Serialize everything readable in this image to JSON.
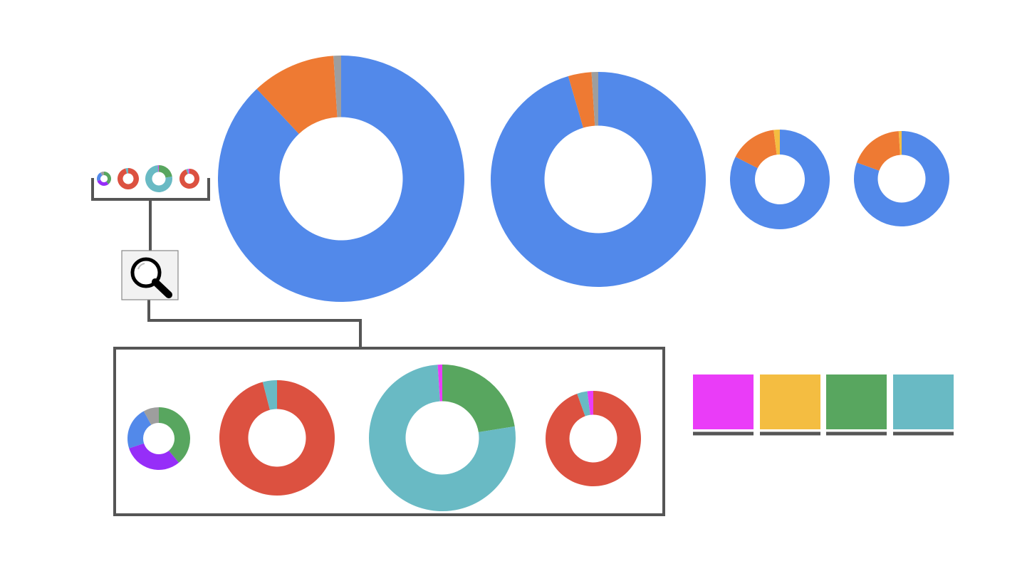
{
  "palette": {
    "blue": "#5289ea",
    "orange": "#ee7a33",
    "gray": "#9e9e9e",
    "yellow": "#f4bd41",
    "red": "#dc5140",
    "teal": "#69bac4",
    "green": "#58a65f",
    "purple": "#962ef8",
    "magenta": "#ea3cf8",
    "connector": "#555555"
  },
  "icons": {
    "zoom": "magnifier-icon"
  },
  "chart_data": [
    {
      "id": "overview-1",
      "type": "pie",
      "hole": 0.5,
      "slices": [
        {
          "color": "blue",
          "value": 88
        },
        {
          "color": "orange",
          "value": 11
        },
        {
          "color": "gray",
          "value": 1
        }
      ]
    },
    {
      "id": "overview-2",
      "type": "pie",
      "hole": 0.5,
      "slices": [
        {
          "color": "blue",
          "value": 95.5
        },
        {
          "color": "orange",
          "value": 3.5
        },
        {
          "color": "gray",
          "value": 1
        }
      ]
    },
    {
      "id": "overview-3",
      "type": "pie",
      "hole": 0.5,
      "slices": [
        {
          "color": "blue",
          "value": 82.5
        },
        {
          "color": "orange",
          "value": 15.5
        },
        {
          "color": "yellow",
          "value": 2
        }
      ]
    },
    {
      "id": "overview-4",
      "type": "pie",
      "hole": 0.5,
      "slices": [
        {
          "color": "blue",
          "value": 80.5
        },
        {
          "color": "orange",
          "value": 18.5
        },
        {
          "color": "yellow",
          "value": 1
        }
      ]
    },
    {
      "id": "detail-1",
      "type": "pie",
      "hole": 0.5,
      "slices": [
        {
          "color": "green",
          "value": 39
        },
        {
          "color": "purple",
          "value": 31
        },
        {
          "color": "blue",
          "value": 22
        },
        {
          "color": "gray",
          "value": 8
        }
      ]
    },
    {
      "id": "detail-2",
      "type": "pie",
      "hole": 0.5,
      "slices": [
        {
          "color": "red",
          "value": 96
        },
        {
          "color": "teal",
          "value": 4
        }
      ]
    },
    {
      "id": "detail-3",
      "type": "pie",
      "hole": 0.5,
      "slices": [
        {
          "color": "green",
          "value": 22.5
        },
        {
          "color": "teal",
          "value": 76.5
        },
        {
          "color": "magenta",
          "value": 1
        }
      ]
    },
    {
      "id": "detail-4",
      "type": "pie",
      "hole": 0.5,
      "slices": [
        {
          "color": "red",
          "value": 94.5
        },
        {
          "color": "teal",
          "value": 3.5
        },
        {
          "color": "magenta",
          "value": 2
        }
      ]
    }
  ],
  "legend_swatches": [
    {
      "color": "magenta"
    },
    {
      "color": "yellow"
    },
    {
      "color": "green"
    },
    {
      "color": "teal"
    }
  ]
}
